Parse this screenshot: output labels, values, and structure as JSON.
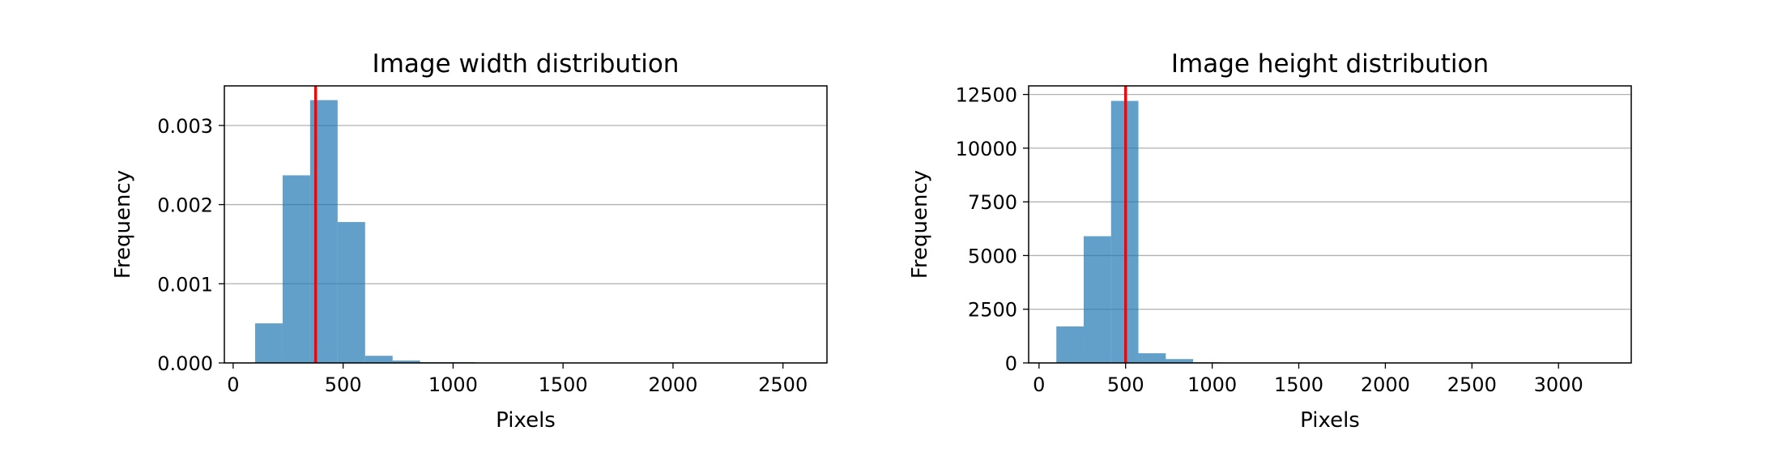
{
  "chart_data": [
    {
      "type": "bar",
      "title": "Image width distribution",
      "xlabel": "Pixels",
      "ylabel": "Frequency",
      "xlim": [
        -40,
        2700
      ],
      "ylim": [
        0,
        0.0035
      ],
      "xticks": [
        0,
        500,
        1000,
        1500,
        2000,
        2500
      ],
      "xtick_labels": [
        "0",
        "500",
        "1000",
        "1500",
        "2000",
        "2500"
      ],
      "yticks": [
        0,
        0.001,
        0.002,
        0.003
      ],
      "ytick_labels": [
        "0.000",
        "0.001",
        "0.002",
        "0.003"
      ],
      "grid": "y",
      "bar_color": "#1f77b4",
      "bar_alpha": 0.7,
      "bins": [
        {
          "x0": 100,
          "x1": 225,
          "value": 0.0005
        },
        {
          "x0": 225,
          "x1": 350,
          "value": 0.00237
        },
        {
          "x0": 350,
          "x1": 475,
          "value": 0.00332
        },
        {
          "x0": 475,
          "x1": 600,
          "value": 0.00178
        },
        {
          "x0": 600,
          "x1": 725,
          "value": 9e-05
        },
        {
          "x0": 725,
          "x1": 850,
          "value": 3e-05
        },
        {
          "x0": 850,
          "x1": 975,
          "value": 1e-05
        },
        {
          "x0": 975,
          "x1": 1100,
          "value": 1e-05
        }
      ],
      "vline": {
        "x": 375,
        "color": "#ff0000"
      }
    },
    {
      "type": "bar",
      "title": "Image height distribution",
      "xlabel": "Pixels",
      "ylabel": "Frequency",
      "xlim": [
        -60,
        3420
      ],
      "ylim": [
        0,
        12900
      ],
      "xticks": [
        0,
        500,
        1000,
        1500,
        2000,
        2500,
        3000
      ],
      "xtick_labels": [
        "0",
        "500",
        "1000",
        "1500",
        "2000",
        "2500",
        "3000"
      ],
      "yticks": [
        0,
        2500,
        5000,
        7500,
        10000,
        12500
      ],
      "ytick_labels": [
        "0",
        "2500",
        "5000",
        "7500",
        "10000",
        "12500"
      ],
      "grid": "y",
      "bar_color": "#1f77b4",
      "bar_alpha": 0.7,
      "bins": [
        {
          "x0": 100,
          "x1": 258,
          "value": 1700
        },
        {
          "x0": 258,
          "x1": 416,
          "value": 5900
        },
        {
          "x0": 416,
          "x1": 574,
          "value": 12200
        },
        {
          "x0": 574,
          "x1": 732,
          "value": 450
        },
        {
          "x0": 732,
          "x1": 890,
          "value": 180
        },
        {
          "x0": 890,
          "x1": 1048,
          "value": 30
        }
      ],
      "vline": {
        "x": 500,
        "color": "#ff0000"
      }
    }
  ]
}
